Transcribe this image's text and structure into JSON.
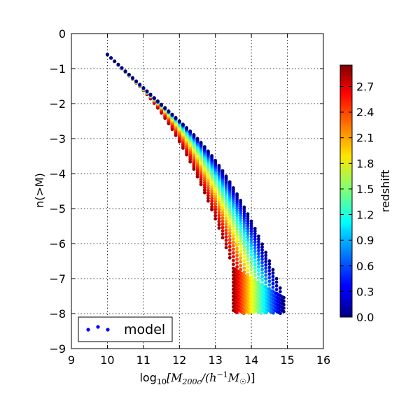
{
  "chart_data": {
    "type": "scatter",
    "xlabel": "log₁₀[M₂₀₀c/(h⁻¹M☉)]",
    "xlabel_parts": {
      "prefix": "log",
      "sub10": "10",
      "open": "[M",
      "sub200c": "200c",
      "mid": "/(h",
      "sup": "−1",
      "M": "M",
      "subsun": "☉",
      "close": ")]"
    },
    "ylabel": "n(>M)",
    "xlim": [
      9,
      16
    ],
    "ylim": [
      -9,
      0
    ],
    "x_ticks": [
      "9",
      "10",
      "11",
      "12",
      "13",
      "14",
      "15",
      "16"
    ],
    "y_ticks": [
      "0",
      "−1",
      "−2",
      "−3",
      "−4",
      "−5",
      "−6",
      "−7",
      "−8",
      "−9"
    ],
    "grid": true,
    "legend": {
      "label": "model",
      "placement": "lower-left",
      "marker_color": "#0000ff"
    },
    "colorbar": {
      "label": "redshift",
      "range": [
        0.0,
        2.95
      ],
      "ticks": [
        "0.0",
        "0.3",
        "0.6",
        "0.9",
        "1.2",
        "1.5",
        "1.8",
        "2.1",
        "2.4",
        "2.7"
      ],
      "colormap": "jet"
    },
    "series_model": {
      "description": "cumulative mass function curves, one per redshift",
      "redshift_min": 0.0,
      "redshift_max": 2.9,
      "redshift_step": 0.1,
      "x_start": 10.0,
      "x_step": 0.1,
      "y_at_x_start": -0.6,
      "low_mass_slope": -0.95,
      "y_floor": -8,
      "cutoff_mass_at_z0": 14.9,
      "cutoff_mass_at_zmax": 13.5
    }
  }
}
